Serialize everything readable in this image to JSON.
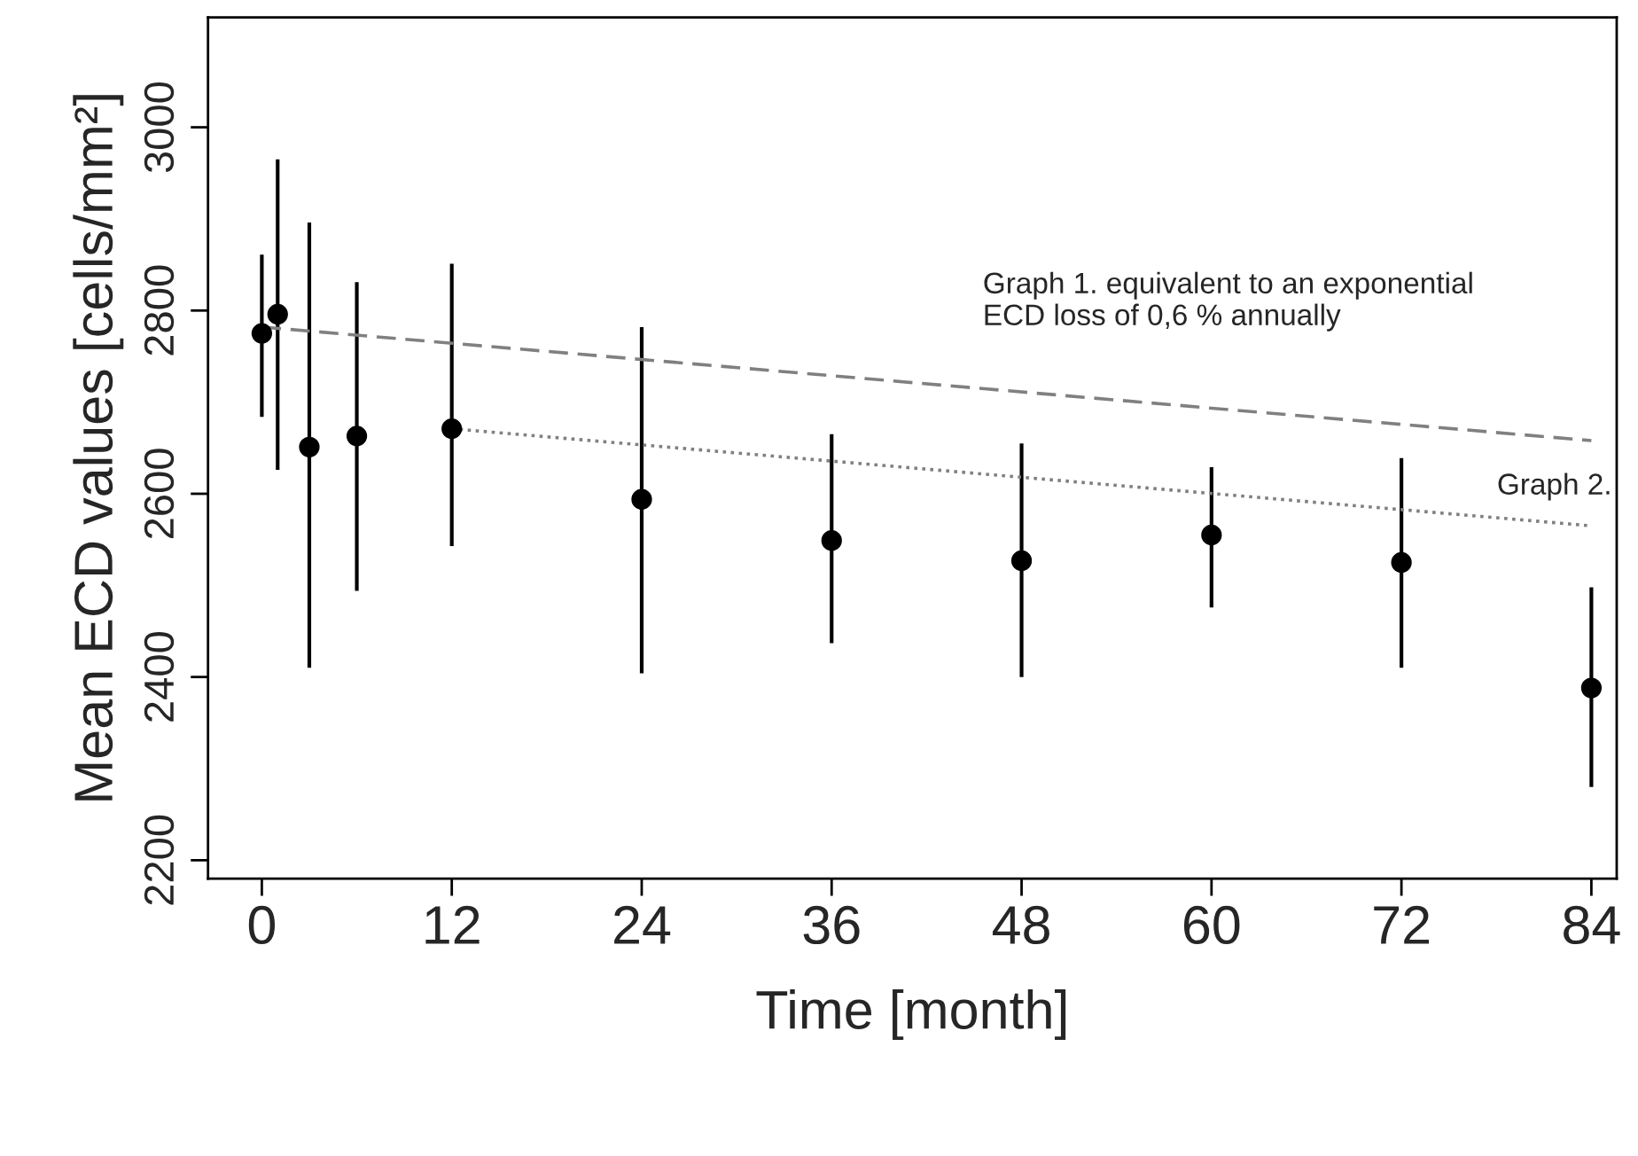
{
  "chart_data": {
    "type": "scatter",
    "xlabel": "Time [month]",
    "ylabel": "Mean ECD values [cells/mm²]",
    "xlim": [
      -3.4,
      85.6
    ],
    "ylim": [
      2180,
      3120
    ],
    "xticks": [
      0,
      12,
      24,
      36,
      48,
      60,
      72,
      84
    ],
    "yticks": [
      2200,
      2400,
      2600,
      2800,
      3000
    ],
    "grid": false,
    "legend": false,
    "series": [
      {
        "marker": "circle",
        "color": "#000000",
        "x": [
          0,
          1,
          3,
          6,
          12,
          24,
          36,
          48,
          60,
          72,
          84
        ],
        "values": [
          2775,
          2796,
          2651,
          2663,
          2671,
          2594,
          2549,
          2527,
          2555,
          2525,
          2388
        ],
        "errors": [
          [
            2684,
            2861
          ],
          [
            2626,
            2965
          ],
          [
            2410,
            2896
          ],
          [
            2494,
            2831
          ],
          [
            2543,
            2851
          ],
          [
            2404,
            2782
          ],
          [
            2437,
            2665
          ],
          [
            2400,
            2655
          ],
          [
            2476,
            2629
          ],
          [
            2410,
            2639
          ],
          [
            2280,
            2498
          ]
        ]
      },
      {
        "type": "line",
        "color": "#808080",
        "line_style": "dashed",
        "marker": "none",
        "x": [
          0,
          84
        ],
        "values": [
          2782,
          2658
        ]
      },
      {
        "type": "line",
        "color": "#808080",
        "line_style": "dotted",
        "marker": "none",
        "x": [
          12,
          84
        ],
        "values": [
          2671,
          2565
        ]
      }
    ],
    "annotations": [
      "Graph 1. equivalent to an exponential\nECD loss of 0,6 % annually",
      "Graph 2."
    ]
  }
}
